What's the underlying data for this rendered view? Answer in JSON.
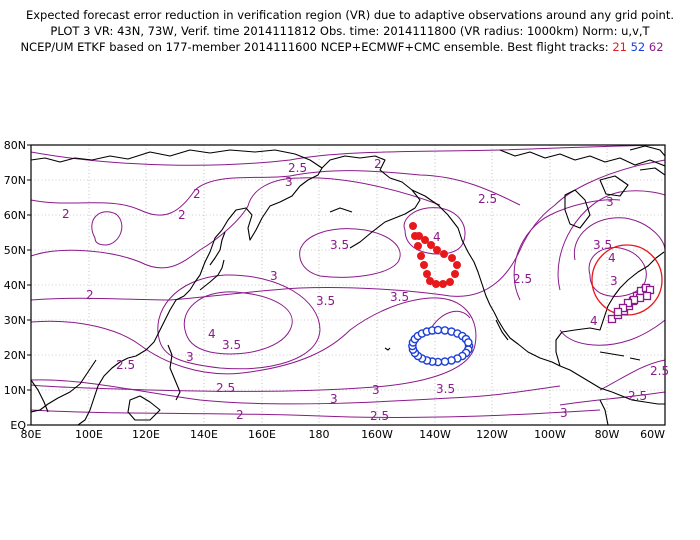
{
  "header": {
    "line1": "Expected forecast error reduction in verification region (VR) due to adaptive observations around any grid point.",
    "line2": "PLOT 3 VR: 43N, 73W, Verif. time 2014111812 Obs. time: 2014111800 (VR radius: 1000km) Norm: u,v,T",
    "line3": "NCEP/UM ETKF based on 177-member 2014111600 NCEP+ECMWF+CMC ensemble. Best flight tracks:",
    "track_red": "21",
    "track_blue": "52",
    "track_purple": "62"
  },
  "map": {
    "lat_labels": [
      "80N",
      "70N",
      "60N",
      "50N",
      "40N",
      "30N",
      "20N",
      "10N",
      "EQ"
    ],
    "lon_labels": [
      "80E",
      "100E",
      "120E",
      "140E",
      "160E",
      "180",
      "160W",
      "140W",
      "120W",
      "100W",
      "80W",
      "60W"
    ],
    "contour_labels": [
      "2.5",
      "2",
      "3",
      "2",
      "2",
      "2.5",
      "2",
      "2",
      "3.5",
      "4",
      "3",
      "3.5",
      "3.5",
      "2.5",
      "3.5",
      "4",
      "4",
      "3.5",
      "2.5",
      "3",
      "2.5",
      "3",
      "3",
      "2.5",
      "2",
      "2.5",
      "3",
      "3.5",
      "2.5",
      "3",
      "3",
      "4"
    ],
    "colors": {
      "contour": "#8b1a8b",
      "track_red": "#e8191b",
      "track_blue": "#1d3fd8",
      "track_purple": "#8b1a8b",
      "verification_circle": "#e8191b",
      "coast": "#000000"
    }
  }
}
